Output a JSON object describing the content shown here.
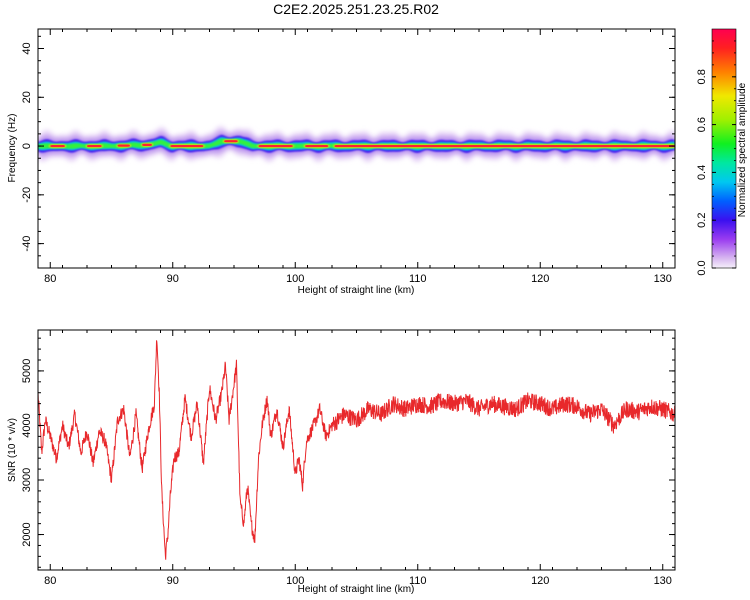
{
  "title": "C2E2.2025.251.23.25.R02",
  "chart_data": [
    {
      "type": "heatmap",
      "xlabel": "Height of straight line (km)",
      "ylabel": "Frequency (Hz)",
      "xlim": [
        79,
        131
      ],
      "ylim": [
        -50,
        48
      ],
      "xticks": [
        80,
        90,
        100,
        110,
        120,
        130
      ],
      "yticks": [
        -40,
        -20,
        0,
        20,
        40
      ],
      "colorbar": {
        "label": "Normalized spectral amplitude",
        "range": [
          0,
          1
        ],
        "ticks": [
          "0.0",
          "0.2",
          "0.4",
          "0.6",
          "0.8"
        ],
        "tick_values": [
          0.0,
          0.2,
          0.4,
          0.6,
          0.8
        ]
      },
      "ridge": {
        "description_values": "signal energy concentrated near 0 Hz along full height range",
        "center_frequency_hz": [
          [
            79.0,
            0
          ],
          [
            82.0,
            0
          ],
          [
            85.0,
            0
          ],
          [
            88.0,
            0.5
          ],
          [
            89.0,
            1.5
          ],
          [
            90.0,
            0
          ],
          [
            93.0,
            0
          ],
          [
            94.0,
            2
          ],
          [
            95.5,
            2
          ],
          [
            96.5,
            0
          ],
          [
            100.0,
            0
          ],
          [
            131.0,
            0
          ]
        ],
        "hot_segments_km": [
          [
            80.0,
            81.2
          ],
          [
            83.0,
            84.2
          ],
          [
            85.5,
            86.5
          ],
          [
            87.5,
            88.3
          ],
          [
            89.8,
            92.5
          ],
          [
            94.2,
            95.3
          ],
          [
            97.0,
            99.8
          ],
          [
            100.8,
            102.7
          ],
          [
            103.2,
            131.0
          ]
        ]
      }
    },
    {
      "type": "line",
      "xlabel": "Height of straight line (km)",
      "ylabel": "SNR (10 * v/v)",
      "xlim": [
        79,
        131
      ],
      "ylim": [
        1350,
        5750
      ],
      "xticks": [
        80,
        90,
        100,
        110,
        120,
        130
      ],
      "yticks": [
        2000,
        3000,
        4000,
        5000
      ],
      "color": "#e8282b",
      "series": [
        {
          "x": [
            79.0,
            79.3,
            79.6,
            80.0,
            80.5,
            81.0,
            81.5,
            82.0,
            82.5,
            83.0,
            83.5,
            84.0,
            84.5,
            85.0,
            85.5,
            86.0,
            86.5,
            87.0,
            87.5,
            88.0,
            88.5,
            88.7,
            88.9,
            89.1,
            89.4,
            89.6,
            89.8,
            90.1,
            90.5,
            91.0,
            91.5,
            92.0,
            92.5,
            93.0,
            93.5,
            94.0,
            94.3,
            94.6,
            94.9,
            95.2,
            95.5,
            95.8,
            96.1,
            96.4,
            96.7,
            97.0,
            97.3,
            97.7,
            98.0,
            98.5,
            99.0,
            99.5,
            100.0,
            100.3,
            100.6,
            100.9,
            101.3,
            101.7,
            102.0,
            102.5,
            103.0,
            104.0,
            105.0,
            106.0,
            107.0,
            108.0,
            109.0,
            110.0,
            111.0,
            112.0,
            113.0,
            114.0,
            115.0,
            116.0,
            117.0,
            118.0,
            119.0,
            120.0,
            121.0,
            122.0,
            123.0,
            124.0,
            125.0,
            126.0,
            127.0,
            128.0,
            129.0,
            130.0,
            131.0
          ],
          "y": [
            4600,
            3500,
            4100,
            3800,
            3400,
            4000,
            3600,
            4200,
            3500,
            3900,
            3300,
            3900,
            3700,
            3000,
            4100,
            4300,
            3400,
            4200,
            3200,
            3900,
            4400,
            5650,
            4600,
            2800,
            1600,
            2000,
            2700,
            3400,
            3500,
            4500,
            3800,
            4400,
            3300,
            4700,
            4100,
            4600,
            5100,
            4100,
            4600,
            5100,
            2600,
            2200,
            2900,
            2200,
            1900,
            3400,
            4000,
            4500,
            3800,
            4300,
            3600,
            4300,
            3100,
            3400,
            2900,
            3700,
            3900,
            4100,
            4300,
            3800,
            4000,
            4200,
            4100,
            4300,
            4200,
            4400,
            4300,
            4400,
            4350,
            4450,
            4400,
            4450,
            4300,
            4400,
            4350,
            4300,
            4450,
            4400,
            4300,
            4400,
            4350,
            4200,
            4300,
            4000,
            4300,
            4250,
            4350,
            4300,
            4200
          ]
        }
      ]
    }
  ]
}
